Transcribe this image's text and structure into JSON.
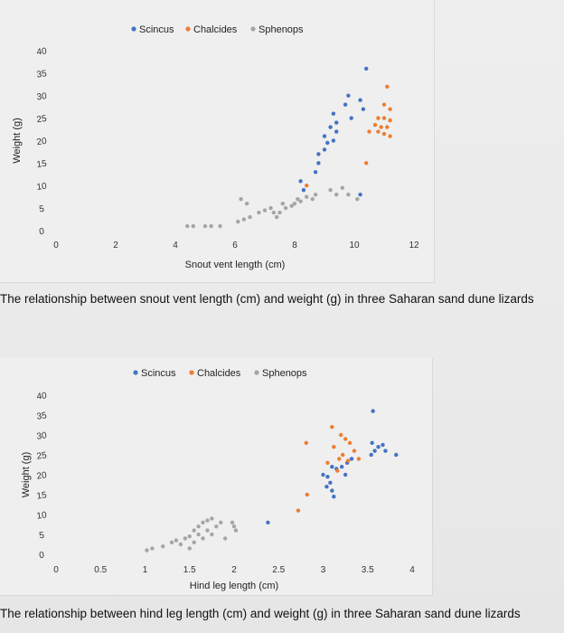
{
  "chart_data": [
    {
      "type": "scatter",
      "title": "",
      "xlabel": "Snout vent length (cm)",
      "ylabel": "Weight (g)",
      "xlim": [
        0,
        12
      ],
      "ylim": [
        0,
        40
      ],
      "x_ticks": [
        "0",
        "2",
        "4",
        "6",
        "8",
        "10",
        "12"
      ],
      "y_ticks": [
        "0",
        "5",
        "10",
        "15",
        "20",
        "25",
        "30",
        "35",
        "40"
      ],
      "legend": "top",
      "grid": false,
      "series": [
        {
          "name": "Scincus",
          "color": "#4472c4",
          "points": [
            [
              10.4,
              36
            ],
            [
              9.8,
              30
            ],
            [
              10.2,
              29
            ],
            [
              9.7,
              28
            ],
            [
              9.3,
              26
            ],
            [
              10.3,
              27
            ],
            [
              9.4,
              24
            ],
            [
              9.9,
              25
            ],
            [
              9.2,
              23
            ],
            [
              9.4,
              22
            ],
            [
              9.0,
              21
            ],
            [
              9.1,
              19.5
            ],
            [
              9.3,
              20
            ],
            [
              9.0,
              18
            ],
            [
              8.8,
              17
            ],
            [
              8.8,
              15
            ],
            [
              8.7,
              13
            ],
            [
              8.2,
              11
            ],
            [
              8.3,
              9
            ],
            [
              10.2,
              8
            ]
          ]
        },
        {
          "name": "Chalcides",
          "color": "#ed7d31",
          "points": [
            [
              11.1,
              32
            ],
            [
              11.0,
              28
            ],
            [
              11.2,
              27
            ],
            [
              10.8,
              25
            ],
            [
              11.0,
              25
            ],
            [
              11.2,
              24.5
            ],
            [
              10.7,
              23.5
            ],
            [
              10.9,
              23
            ],
            [
              11.1,
              23
            ],
            [
              10.8,
              22
            ],
            [
              11.0,
              21.5
            ],
            [
              11.2,
              21
            ],
            [
              10.5,
              22
            ],
            [
              10.4,
              15
            ],
            [
              8.4,
              10
            ]
          ]
        },
        {
          "name": "Sphenops",
          "color": "#a5a5a5",
          "points": [
            [
              4.4,
              1
            ],
            [
              4.6,
              1
            ],
            [
              5.0,
              1
            ],
            [
              5.2,
              1
            ],
            [
              5.5,
              1
            ],
            [
              6.1,
              2
            ],
            [
              6.3,
              2.5
            ],
            [
              6.5,
              3
            ],
            [
              6.2,
              7
            ],
            [
              6.4,
              6
            ],
            [
              6.8,
              4
            ],
            [
              7.0,
              4.5
            ],
            [
              7.2,
              5
            ],
            [
              7.3,
              4
            ],
            [
              7.4,
              3
            ],
            [
              7.5,
              4
            ],
            [
              7.6,
              6
            ],
            [
              7.7,
              5
            ],
            [
              7.9,
              5.5
            ],
            [
              8.0,
              6
            ],
            [
              8.1,
              7
            ],
            [
              8.2,
              6.5
            ],
            [
              8.4,
              7.5
            ],
            [
              8.6,
              7
            ],
            [
              8.7,
              8
            ],
            [
              9.2,
              9
            ],
            [
              9.4,
              8
            ],
            [
              9.6,
              9.5
            ],
            [
              9.8,
              8
            ],
            [
              10.1,
              7
            ]
          ]
        }
      ]
    },
    {
      "type": "scatter",
      "title": "",
      "xlabel": "Hind leg length (cm)",
      "ylabel": "Weight (g)",
      "xlim": [
        0,
        4
      ],
      "ylim": [
        0,
        40
      ],
      "x_ticks": [
        "0",
        "0.5",
        "1",
        "1.5",
        "2",
        "2.5",
        "3",
        "3.5",
        "4"
      ],
      "y_ticks": [
        "0",
        "5",
        "10",
        "15",
        "20",
        "25",
        "30",
        "35",
        "40"
      ],
      "legend": "top",
      "grid": false,
      "series": [
        {
          "name": "Scincus",
          "color": "#4472c4",
          "points": [
            [
              3.56,
              36
            ],
            [
              3.55,
              28
            ],
            [
              3.62,
              27
            ],
            [
              3.67,
              27.5
            ],
            [
              3.7,
              26
            ],
            [
              3.54,
              25
            ],
            [
              3.58,
              26
            ],
            [
              3.82,
              25
            ],
            [
              3.27,
              23
            ],
            [
              3.32,
              24
            ],
            [
              3.1,
              22
            ],
            [
              3.15,
              21.5
            ],
            [
              3.21,
              22
            ],
            [
              3.0,
              20
            ],
            [
              3.05,
              19.5
            ],
            [
              3.25,
              20
            ],
            [
              3.08,
              18
            ],
            [
              3.04,
              17
            ],
            [
              3.1,
              16
            ],
            [
              3.12,
              14.5
            ],
            [
              2.38,
              8
            ]
          ]
        },
        {
          "name": "Chalcides",
          "color": "#ed7d31",
          "points": [
            [
              3.1,
              32
            ],
            [
              3.2,
              30
            ],
            [
              3.25,
              29
            ],
            [
              3.12,
              27
            ],
            [
              3.3,
              28
            ],
            [
              3.35,
              26
            ],
            [
              3.22,
              25
            ],
            [
              3.18,
              24
            ],
            [
              3.05,
              23
            ],
            [
              3.28,
              23.5
            ],
            [
              3.16,
              21
            ],
            [
              3.4,
              24
            ],
            [
              2.81,
              28
            ],
            [
              2.82,
              15
            ],
            [
              2.72,
              11
            ]
          ]
        },
        {
          "name": "Sphenops",
          "color": "#a5a5a5",
          "points": [
            [
              1.02,
              1
            ],
            [
              1.08,
              1.5
            ],
            [
              1.2,
              2
            ],
            [
              1.3,
              3
            ],
            [
              1.35,
              3.5
            ],
            [
              1.4,
              2.5
            ],
            [
              1.45,
              4
            ],
            [
              1.5,
              4.5
            ],
            [
              1.55,
              6
            ],
            [
              1.6,
              7
            ],
            [
              1.65,
              8
            ],
            [
              1.7,
              8.5
            ],
            [
              1.75,
              9
            ],
            [
              1.7,
              6
            ],
            [
              1.75,
              5
            ],
            [
              1.8,
              7
            ],
            [
              1.85,
              8
            ],
            [
              1.6,
              5
            ],
            [
              1.55,
              3
            ],
            [
              1.65,
              4
            ],
            [
              1.98,
              8
            ],
            [
              2.0,
              7
            ],
            [
              2.02,
              6
            ],
            [
              1.9,
              4
            ],
            [
              1.5,
              1.5
            ]
          ]
        }
      ]
    }
  ],
  "captions": {
    "chart1": "The relationship between snout vent length (cm) and weight (g) in three Saharan sand dune lizards",
    "chart2": "The relationship between hind leg length (cm) and weight (g) in three Saharan sand dune lizards"
  }
}
